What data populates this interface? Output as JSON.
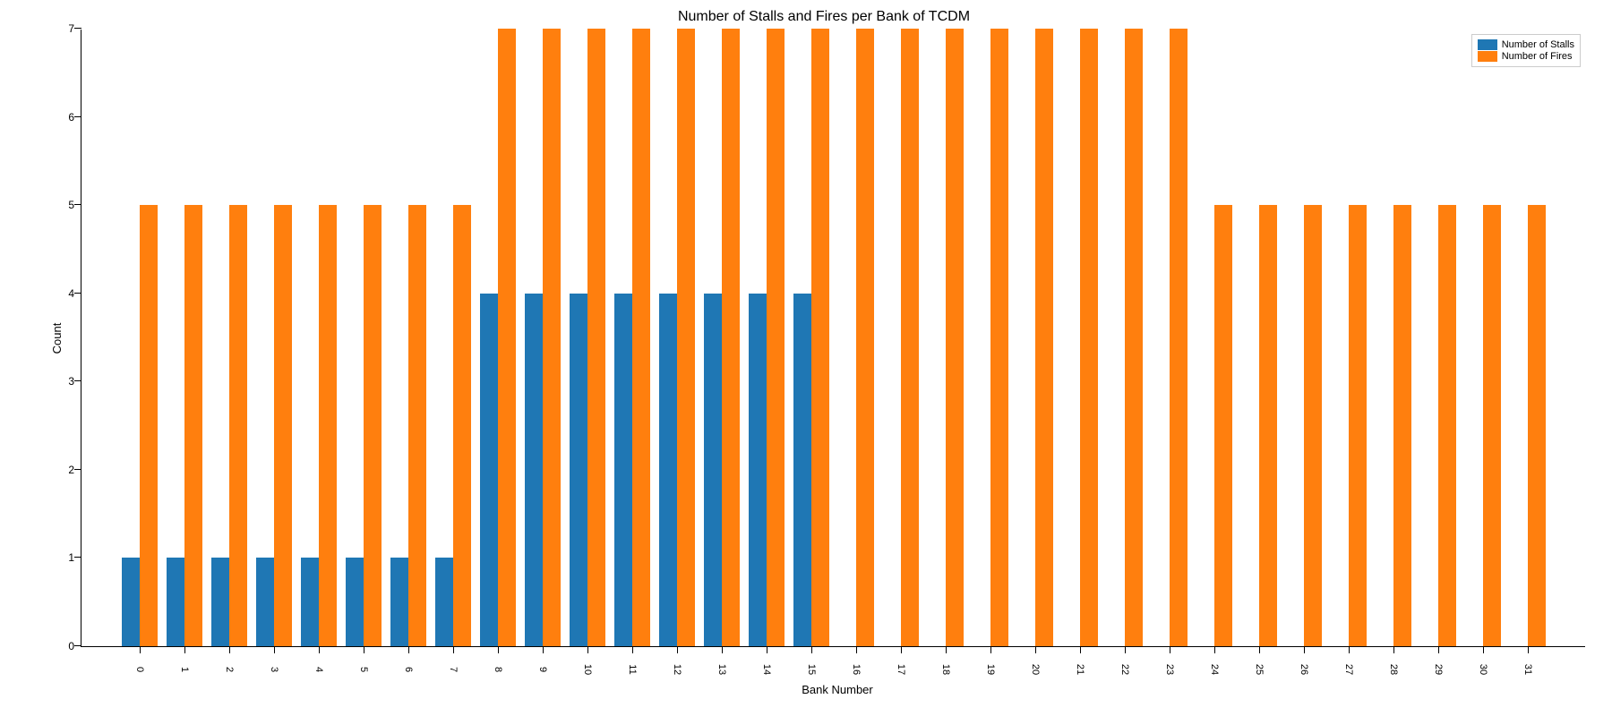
{
  "chart": {
    "type": "bar",
    "title": "Number of Stalls and Fires per Bank of TCDM",
    "title_fontsize": 16,
    "xlabel": "Bank Number",
    "ylabel": "Count",
    "label_fontsize": 13,
    "tick_fontsize": 12,
    "background_color": "#ffffff",
    "categories": [
      "0",
      "1",
      "2",
      "3",
      "4",
      "5",
      "6",
      "7",
      "8",
      "9",
      "10",
      "11",
      "12",
      "13",
      "14",
      "15",
      "16",
      "17",
      "18",
      "19",
      "20",
      "21",
      "22",
      "23",
      "24",
      "25",
      "26",
      "27",
      "28",
      "29",
      "30",
      "31"
    ],
    "series": [
      {
        "name": "Number of Stalls",
        "color": "#1f77b4",
        "values": [
          1,
          1,
          1,
          1,
          1,
          1,
          1,
          1,
          4,
          4,
          4,
          4,
          4,
          4,
          4,
          4,
          0,
          0,
          0,
          0,
          0,
          0,
          0,
          0,
          0,
          0,
          0,
          0,
          0,
          0,
          0,
          0
        ]
      },
      {
        "name": "Number of Fires",
        "color": "#ff7f0e",
        "values": [
          5,
          5,
          5,
          5,
          5,
          5,
          5,
          5,
          7,
          7,
          7,
          7,
          7,
          7,
          7,
          7,
          7,
          7,
          7,
          7,
          7,
          7,
          7,
          7,
          5,
          5,
          5,
          5,
          5,
          5,
          5,
          5
        ]
      }
    ],
    "ylim": [
      0,
      7
    ],
    "ytick_step": 1,
    "bar_width_ratio": 0.4,
    "legend_position": "upper right"
  }
}
